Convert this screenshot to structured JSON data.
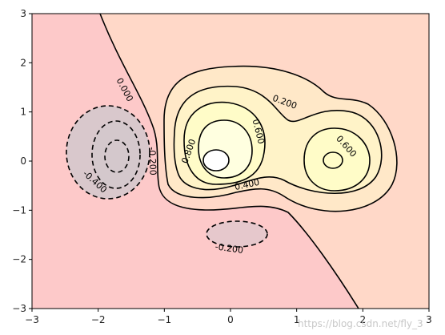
{
  "chart_data": {
    "type": "contour",
    "xlim": [
      -3,
      3
    ],
    "ylim": [
      -3,
      3
    ],
    "xticks": [
      "−3",
      "−2",
      "−1",
      "0",
      "1",
      "2",
      "3"
    ],
    "yticks": [
      "−3",
      "−2",
      "−1",
      "0",
      "1",
      "2",
      "3"
    ],
    "grid": false,
    "colors": {
      "background_low": "#fdc9c9",
      "band_mid": "#ffd8c8",
      "band_high": "#fff1c8",
      "band_peak": "#ffffc8",
      "neg_region": "#d9c8cc",
      "line": "#000000"
    },
    "contour_labels": [
      {
        "value": "0.000",
        "x": -1.6,
        "y": 1.45,
        "rot": 62
      },
      {
        "value": "0.200",
        "x": 0.82,
        "y": 1.2,
        "rot": 20
      },
      {
        "value": "0.600",
        "x": 0.42,
        "y": 0.6,
        "rot": 76
      },
      {
        "value": "0.800",
        "x": -0.63,
        "y": 0.2,
        "rot": -70
      },
      {
        "value": "0.400",
        "x": 0.25,
        "y": -0.48,
        "rot": -12
      },
      {
        "value": "0.600",
        "x": 1.75,
        "y": 0.3,
        "rot": 48
      },
      {
        "value": "-0.200",
        "x": -1.18,
        "y": 0.0,
        "rot": 88
      },
      {
        "value": "-0.400",
        "x": -2.05,
        "y": -0.42,
        "rot": 42
      },
      {
        "value": "-0.200",
        "x": -0.02,
        "y": -1.78,
        "rot": 8
      }
    ],
    "watermark": "https://blog.csdn.net/fly_3"
  }
}
